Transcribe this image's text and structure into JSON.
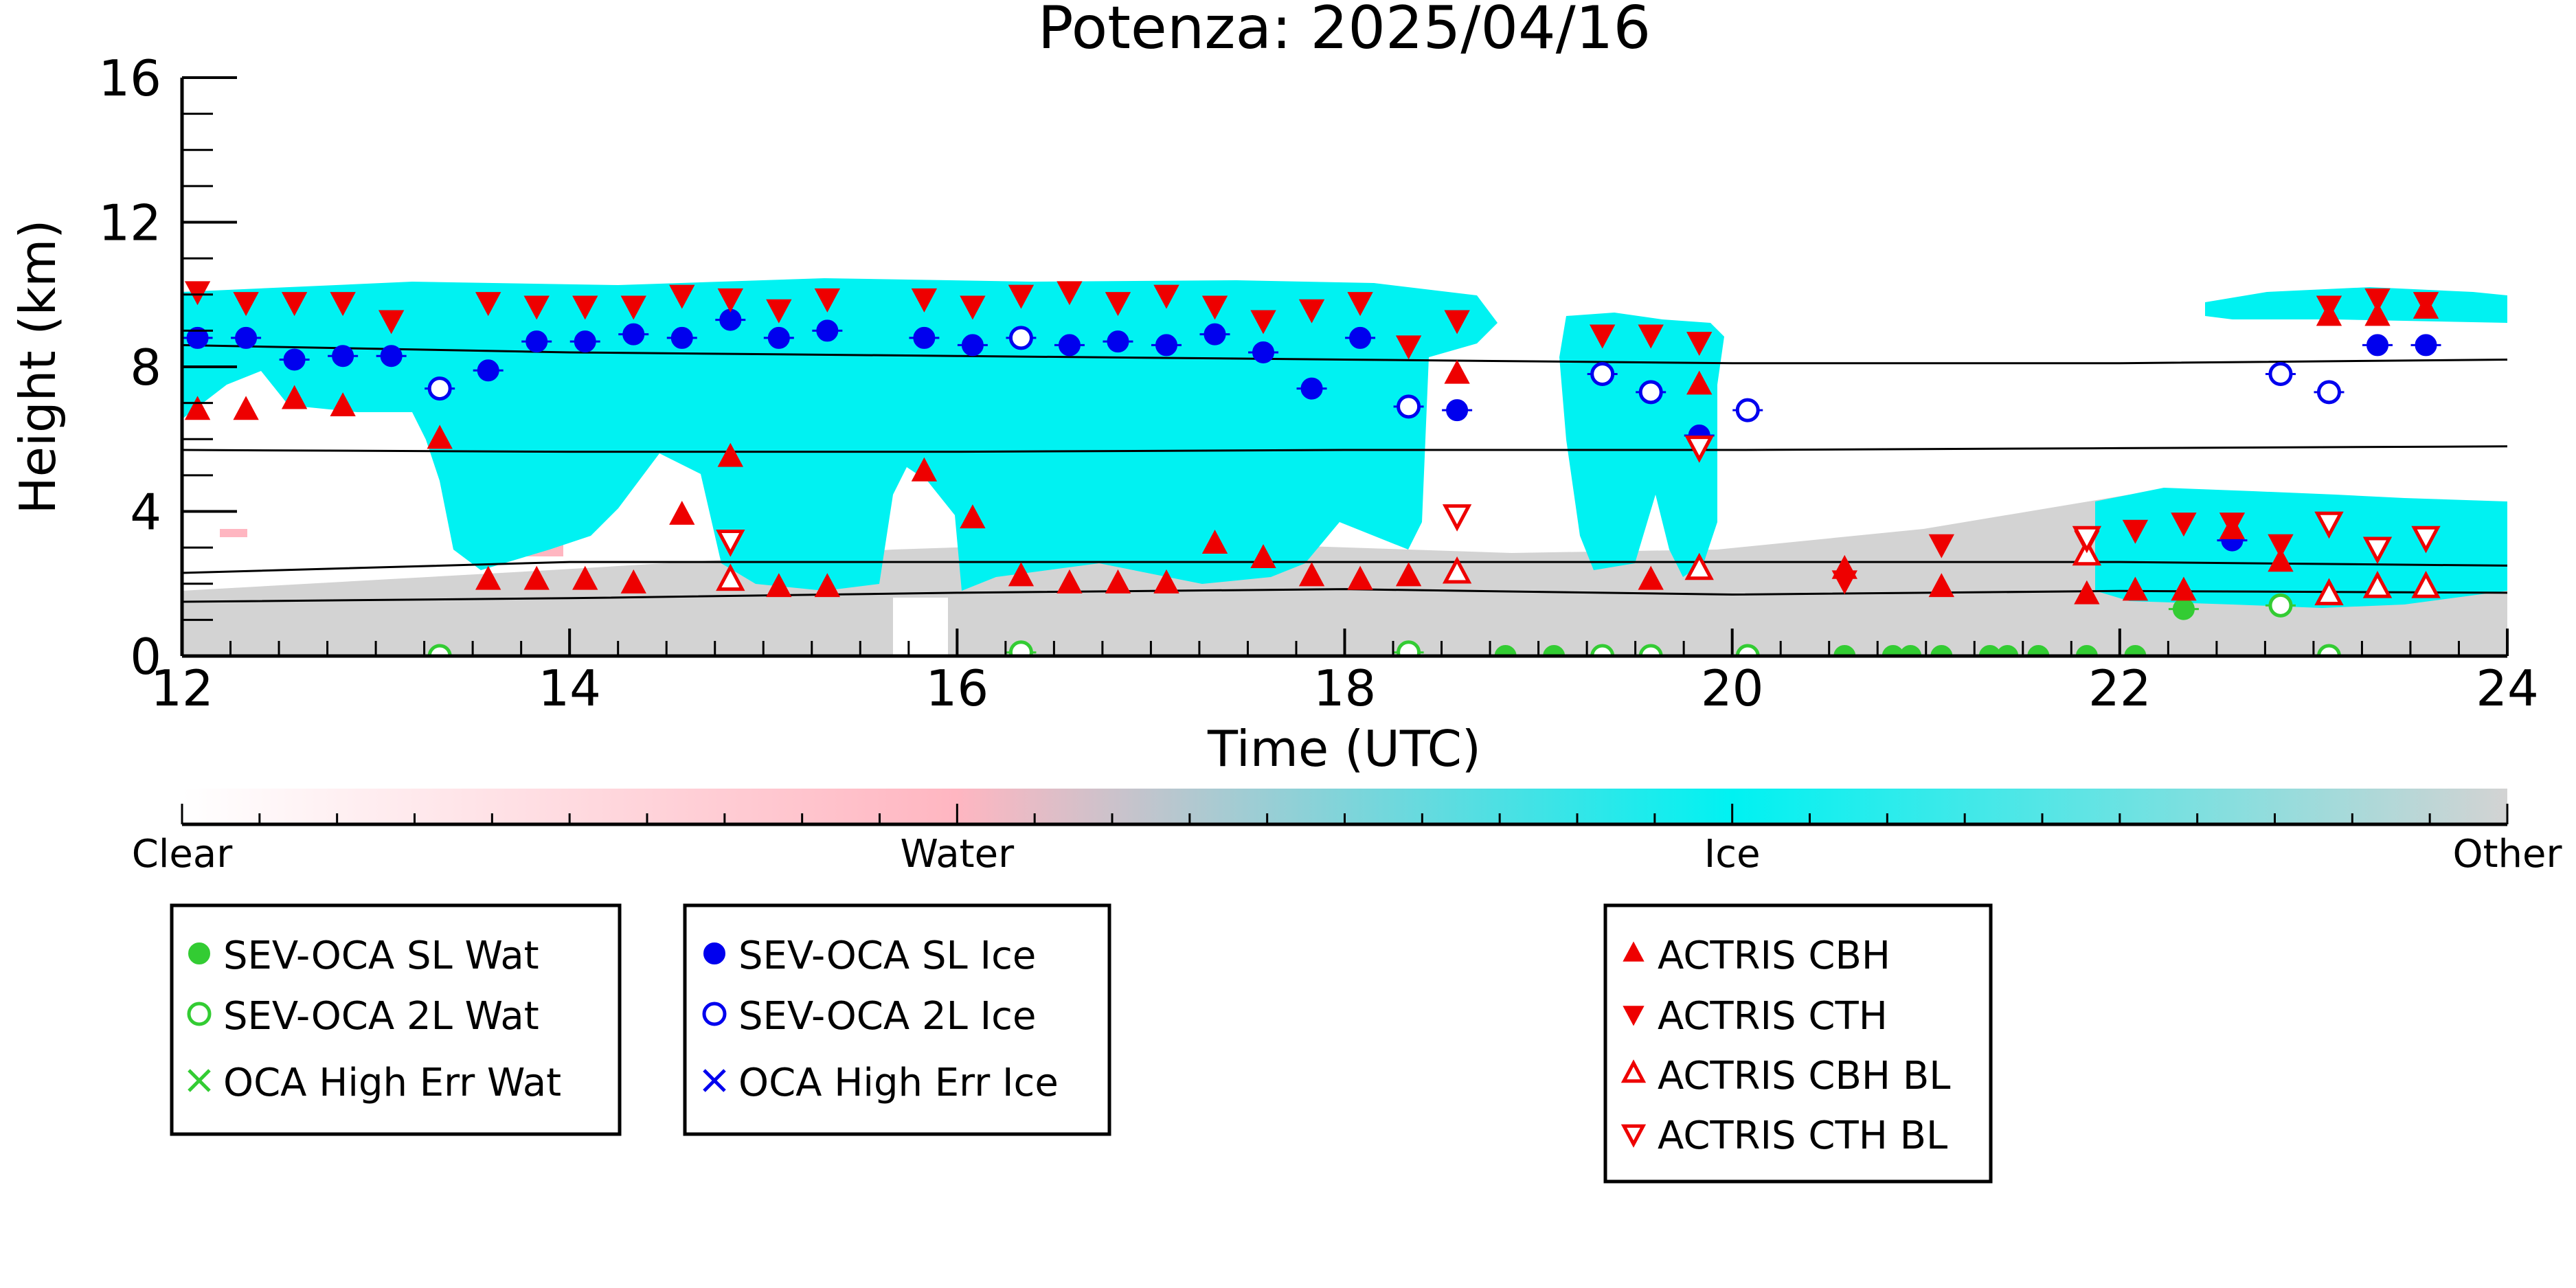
{
  "chart_data": {
    "type": "scatter",
    "title": "Potenza: 2025/04/16",
    "xlabel": "Time (UTC)",
    "ylabel": "Height (km)",
    "xlim": [
      12,
      24
    ],
    "ylim": [
      0,
      16
    ],
    "x_ticks": [
      12,
      14,
      16,
      18,
      20,
      22,
      24
    ],
    "y_ticks": [
      0,
      4,
      8,
      12,
      16
    ],
    "grid": false,
    "colors": {
      "water": "#ffb6c1",
      "ice": "#00f2f2",
      "other": "#d3d3d3",
      "sl_wat": "#33cc33",
      "sl_ice": "#0000ee",
      "actris": "#ee0000"
    },
    "colorbar": {
      "labels": [
        "Clear",
        "Water",
        "Ice",
        "Other"
      ]
    },
    "reference_lines": [
      {
        "x": [
          12,
          14,
          16,
          18,
          20,
          22,
          24
        ],
        "y": [
          8.6,
          8.4,
          8.3,
          8.2,
          8.1,
          8.1,
          8.2
        ]
      },
      {
        "x": [
          12,
          14,
          16,
          18,
          20,
          22,
          24
        ],
        "y": [
          5.7,
          5.65,
          5.65,
          5.7,
          5.7,
          5.75,
          5.8
        ]
      },
      {
        "x": [
          12,
          14,
          16,
          18,
          20,
          22,
          24
        ],
        "y": [
          2.3,
          2.6,
          2.6,
          2.6,
          2.6,
          2.6,
          2.5
        ]
      },
      {
        "x": [
          12,
          14,
          16,
          18,
          20,
          22,
          24
        ],
        "y": [
          1.5,
          1.6,
          1.75,
          1.85,
          1.7,
          1.8,
          1.75
        ]
      }
    ],
    "series": [
      {
        "name": "SEV-OCA SL Wat",
        "x": [
          18.83,
          19.08,
          20.58,
          20.83,
          20.92,
          21.08,
          21.33,
          21.42,
          21.58,
          21.83,
          22.08,
          22.33
        ],
        "y": [
          0.0,
          0.0,
          0.0,
          0.0,
          0.0,
          0.0,
          0.0,
          0.0,
          0.0,
          0.0,
          0.0,
          1.3
        ]
      },
      {
        "name": "SEV-OCA 2L Wat",
        "x": [
          13.33,
          16.33,
          18.33,
          19.33,
          19.58,
          20.08,
          22.83,
          23.08
        ],
        "y": [
          0.0,
          0.1,
          0.1,
          0.0,
          0.0,
          0.0,
          1.4,
          0.0
        ]
      },
      {
        "name": "OCA High Err Wat",
        "x": [],
        "y": []
      },
      {
        "name": "SEV-OCA SL Ice",
        "x": [
          12.08,
          12.33,
          12.58,
          12.83,
          13.08,
          13.58,
          13.83,
          14.08,
          14.33,
          14.58,
          14.83,
          15.08,
          15.33,
          15.83,
          16.08,
          16.58,
          16.83,
          17.08,
          17.33,
          17.58,
          17.83,
          18.08,
          18.58,
          19.83,
          22.58,
          23.33,
          23.58
        ],
        "y": [
          8.8,
          8.8,
          8.2,
          8.3,
          8.3,
          7.9,
          8.7,
          8.7,
          8.9,
          8.8,
          9.3,
          8.8,
          9.0,
          8.8,
          8.6,
          8.6,
          8.7,
          8.6,
          8.9,
          8.4,
          7.4,
          8.8,
          6.8,
          6.1,
          3.2,
          8.6,
          8.6
        ]
      },
      {
        "name": "SEV-OCA 2L Ice",
        "x": [
          13.33,
          16.33,
          18.33,
          19.33,
          19.58,
          20.08,
          22.83,
          23.08
        ],
        "y": [
          7.4,
          8.8,
          6.9,
          7.8,
          7.3,
          6.8,
          7.8,
          7.3
        ]
      },
      {
        "name": "OCA High Err Ice",
        "x": [],
        "y": []
      },
      {
        "name": "ACTRIS CBH",
        "x": [
          12.08,
          12.33,
          12.58,
          12.83,
          13.33,
          13.58,
          13.83,
          14.08,
          14.33,
          14.58,
          14.83,
          15.08,
          15.33,
          15.83,
          16.08,
          16.33,
          16.58,
          16.83,
          17.08,
          17.33,
          17.58,
          17.83,
          18.08,
          18.33,
          18.58,
          19.58,
          19.83,
          20.58,
          21.08,
          21.83,
          22.08,
          22.33,
          22.58,
          22.83,
          23.08,
          23.33,
          23.58
        ],
        "y": [
          6.8,
          6.8,
          7.1,
          6.9,
          6.0,
          2.1,
          2.1,
          2.1,
          2.0,
          3.9,
          5.5,
          1.9,
          1.9,
          5.1,
          3.8,
          2.2,
          2.0,
          2.0,
          2.0,
          3.1,
          2.7,
          2.2,
          2.1,
          2.2,
          7.8,
          2.1,
          7.5,
          2.4,
          1.9,
          1.7,
          1.8,
          1.8,
          3.5,
          2.6,
          9.4,
          9.4,
          9.6
        ]
      },
      {
        "name": "ACTRIS CTH",
        "x": [
          12.08,
          12.33,
          12.58,
          12.83,
          13.08,
          13.58,
          13.83,
          14.08,
          14.33,
          14.58,
          14.83,
          15.08,
          15.33,
          15.83,
          16.08,
          16.33,
          16.58,
          16.83,
          17.08,
          17.33,
          17.58,
          17.83,
          18.08,
          18.33,
          18.58,
          19.33,
          19.58,
          19.83,
          20.58,
          21.08,
          21.83,
          22.08,
          22.33,
          22.58,
          22.83,
          23.08,
          23.33,
          23.58
        ],
        "y": [
          10.1,
          9.8,
          9.8,
          9.8,
          9.3,
          9.8,
          9.7,
          9.7,
          9.7,
          10.0,
          9.9,
          9.6,
          9.9,
          9.9,
          9.7,
          10.0,
          10.1,
          9.8,
          10.0,
          9.7,
          9.3,
          9.6,
          9.8,
          8.6,
          9.3,
          8.9,
          8.9,
          8.7,
          2.1,
          3.1,
          3.2,
          3.5,
          3.7,
          3.7,
          3.1,
          9.7,
          9.9,
          9.8
        ]
      },
      {
        "name": "ACTRIS CBH BL",
        "x": [
          14.83,
          18.58,
          19.83,
          21.83,
          23.08,
          23.33,
          23.58
        ],
        "y": [
          2.1,
          2.3,
          2.4,
          2.8,
          1.7,
          1.9,
          1.9
        ]
      },
      {
        "name": "ACTRIS CTH BL",
        "x": [
          14.83,
          18.58,
          19.83,
          21.83,
          23.08,
          23.33,
          23.58
        ],
        "y": [
          3.2,
          3.9,
          5.8,
          3.3,
          3.7,
          3.0,
          3.3
        ]
      }
    ]
  }
}
